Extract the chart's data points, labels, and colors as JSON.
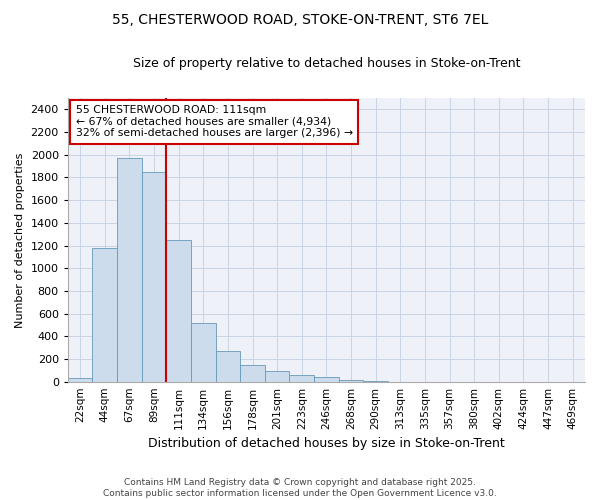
{
  "title_line1": "55, CHESTERWOOD ROAD, STOKE-ON-TRENT, ST6 7EL",
  "title_line2": "Size of property relative to detached houses in Stoke-on-Trent",
  "xlabel": "Distribution of detached houses by size in Stoke-on-Trent",
  "ylabel": "Number of detached properties",
  "footer_line1": "Contains HM Land Registry data © Crown copyright and database right 2025.",
  "footer_line2": "Contains public sector information licensed under the Open Government Licence v3.0.",
  "annotation_line1": "55 CHESTERWOOD ROAD: 111sqm",
  "annotation_line2": "← 67% of detached houses are smaller (4,934)",
  "annotation_line3": "32% of semi-detached houses are larger (2,396) →",
  "bar_color": "#ccdcec",
  "bar_edge_color": "#6699bb",
  "vline_color": "#cc0000",
  "annotation_box_edgecolor": "#cc0000",
  "annotation_box_facecolor": "#ffffff",
  "grid_color": "#c8d4e4",
  "background_color": "#eef2f8",
  "bins": [
    "22sqm",
    "44sqm",
    "67sqm",
    "89sqm",
    "111sqm",
    "134sqm",
    "156sqm",
    "178sqm",
    "201sqm",
    "223sqm",
    "246sqm",
    "268sqm",
    "290sqm",
    "313sqm",
    "335sqm",
    "357sqm",
    "380sqm",
    "402sqm",
    "424sqm",
    "447sqm",
    "469sqm"
  ],
  "values": [
    30,
    1175,
    1975,
    1850,
    1250,
    520,
    270,
    150,
    90,
    55,
    40,
    15,
    5,
    0,
    0,
    0,
    0,
    0,
    0,
    0,
    0
  ],
  "vline_x_index": 4,
  "ylim": [
    0,
    2500
  ],
  "yticks": [
    0,
    200,
    400,
    600,
    800,
    1000,
    1200,
    1400,
    1600,
    1800,
    2000,
    2200,
    2400
  ]
}
